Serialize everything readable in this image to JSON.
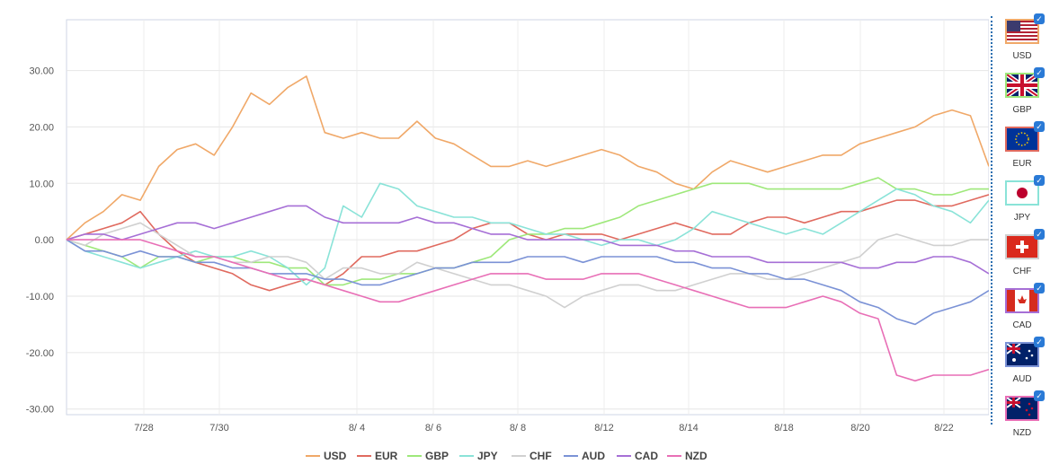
{
  "chart_data": {
    "type": "line",
    "x_ticks": [
      "7/28",
      "7/30",
      "8/ 4",
      "8/ 6",
      "8/ 8",
      "8/12",
      "8/14",
      "8/18",
      "8/20",
      "8/22"
    ],
    "y_ticks": [
      "30.00",
      "20.00",
      "10.00",
      "0.00",
      "-10.00",
      "-20.00",
      "-30.00"
    ],
    "ylim": [
      -31,
      39
    ],
    "grid": true,
    "legend_position": "bottom",
    "series": [
      {
        "name": "USD",
        "color": "#f0a868",
        "values": [
          0,
          3,
          5,
          8,
          7,
          13,
          16,
          17,
          15,
          20,
          26,
          24,
          27,
          29,
          19,
          18,
          19,
          18,
          18,
          21,
          18,
          17,
          15,
          13,
          13,
          14,
          13,
          14,
          15,
          16,
          15,
          13,
          12,
          10,
          9,
          12,
          14,
          13,
          12,
          13,
          14,
          15,
          15,
          17,
          18,
          19,
          20,
          22,
          23,
          22,
          13
        ]
      },
      {
        "name": "EUR",
        "color": "#e06a5f",
        "values": [
          0,
          1,
          2,
          3,
          5,
          1,
          -2,
          -4,
          -5,
          -6,
          -8,
          -9,
          -8,
          -7,
          -8,
          -6,
          -3,
          -3,
          -2,
          -2,
          -1,
          0,
          2,
          3,
          3,
          1,
          0,
          1,
          1,
          1,
          0,
          1,
          2,
          3,
          2,
          1,
          1,
          3,
          4,
          4,
          3,
          4,
          5,
          5,
          6,
          7,
          7,
          6,
          6,
          7,
          8
        ]
      },
      {
        "name": "GBP",
        "color": "#9ee87a",
        "values": [
          0,
          -1,
          -2,
          -3,
          -5,
          -3,
          -3,
          -4,
          -3,
          -3,
          -4,
          -4,
          -5,
          -5,
          -8,
          -8,
          -7,
          -7,
          -6,
          -6,
          -5,
          -5,
          -4,
          -3,
          0,
          1,
          1,
          2,
          2,
          3,
          4,
          6,
          7,
          8,
          9,
          10,
          10,
          10,
          9,
          9,
          9,
          9,
          9,
          10,
          11,
          9,
          9,
          8,
          8,
          9,
          9
        ]
      },
      {
        "name": "JPY",
        "color": "#8ae3d8",
        "values": [
          0,
          -2,
          -3,
          -4,
          -5,
          -4,
          -3,
          -2,
          -3,
          -3,
          -2,
          -3,
          -5,
          -8,
          -5,
          6,
          4,
          10,
          9,
          6,
          5,
          4,
          4,
          3,
          3,
          2,
          1,
          1,
          0,
          -1,
          0,
          0,
          -1,
          0,
          2,
          5,
          4,
          3,
          2,
          1,
          2,
          1,
          3,
          5,
          7,
          9,
          8,
          6,
          5,
          3,
          7
        ]
      },
      {
        "name": "CHF",
        "color": "#d0d0d0",
        "values": [
          0,
          -1,
          1,
          2,
          3,
          1,
          -1,
          -3,
          -3,
          -4,
          -4,
          -3,
          -3,
          -4,
          -7,
          -5,
          -5,
          -6,
          -6,
          -4,
          -5,
          -6,
          -7,
          -8,
          -8,
          -9,
          -10,
          -12,
          -10,
          -9,
          -8,
          -8,
          -9,
          -9,
          -8,
          -7,
          -6,
          -6,
          -7,
          -7,
          -6,
          -5,
          -4,
          -3,
          0,
          1,
          0,
          -1,
          -1,
          0,
          0
        ]
      },
      {
        "name": "AUD",
        "color": "#7b92d6",
        "values": [
          0,
          -2,
          -2,
          -3,
          -2,
          -3,
          -3,
          -4,
          -4,
          -5,
          -5,
          -6,
          -6,
          -6,
          -7,
          -7,
          -8,
          -8,
          -7,
          -6,
          -5,
          -5,
          -4,
          -4,
          -4,
          -3,
          -3,
          -3,
          -4,
          -3,
          -3,
          -3,
          -3,
          -4,
          -4,
          -5,
          -5,
          -6,
          -6,
          -7,
          -7,
          -8,
          -9,
          -11,
          -12,
          -14,
          -15,
          -13,
          -12,
          -11,
          -9
        ]
      },
      {
        "name": "CAD",
        "color": "#a66fd6",
        "values": [
          0,
          1,
          1,
          0,
          1,
          2,
          3,
          3,
          2,
          3,
          4,
          5,
          6,
          6,
          4,
          3,
          3,
          3,
          3,
          4,
          3,
          3,
          2,
          1,
          1,
          0,
          0,
          0,
          0,
          0,
          -1,
          -1,
          -1,
          -2,
          -2,
          -3,
          -3,
          -3,
          -4,
          -4,
          -4,
          -4,
          -4,
          -5,
          -5,
          -4,
          -4,
          -3,
          -3,
          -4,
          -6
        ]
      },
      {
        "name": "NZD",
        "color": "#e86fb6",
        "values": [
          0,
          0,
          0,
          0,
          0,
          -1,
          -2,
          -3,
          -3,
          -4,
          -5,
          -6,
          -7,
          -7,
          -8,
          -9,
          -10,
          -11,
          -11,
          -10,
          -9,
          -8,
          -7,
          -6,
          -6,
          -6,
          -7,
          -7,
          -7,
          -6,
          -6,
          -6,
          -7,
          -8,
          -9,
          -10,
          -11,
          -12,
          -12,
          -12,
          -11,
          -10,
          -11,
          -13,
          -14,
          -24,
          -25,
          -24,
          -24,
          -24,
          -23
        ]
      }
    ]
  },
  "panel": {
    "currencies": [
      {
        "code": "USD",
        "flag": "us-flag-icon"
      },
      {
        "code": "GBP",
        "flag": "uk-flag-icon"
      },
      {
        "code": "EUR",
        "flag": "eu-flag-icon"
      },
      {
        "code": "JPY",
        "flag": "jp-flag-icon"
      },
      {
        "code": "CHF",
        "flag": "ch-flag-icon"
      },
      {
        "code": "CAD",
        "flag": "ca-flag-icon"
      },
      {
        "code": "AUD",
        "flag": "au-flag-icon"
      },
      {
        "code": "NZD",
        "flag": "nz-flag-icon"
      }
    ],
    "checked": true
  }
}
